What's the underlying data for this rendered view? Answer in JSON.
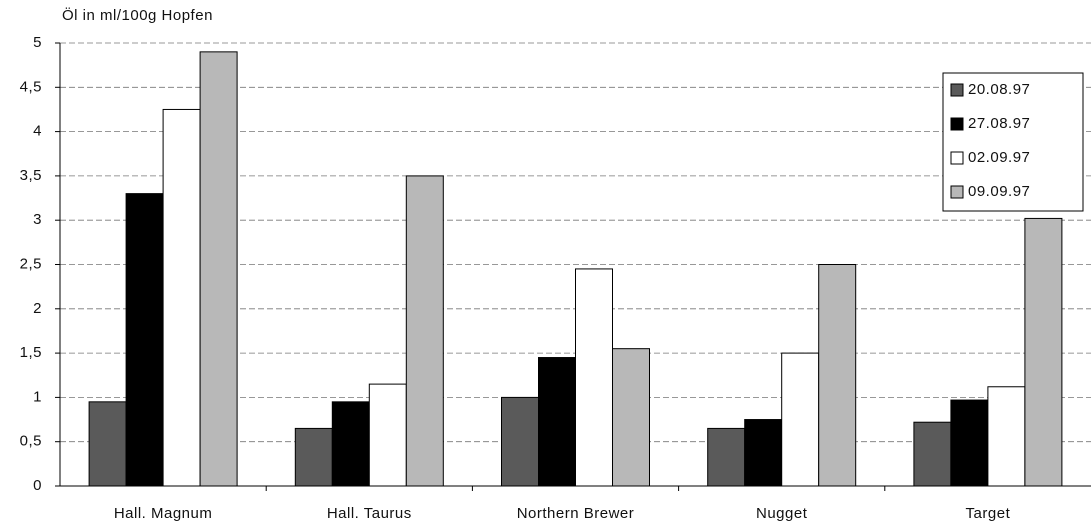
{
  "chart_data": {
    "type": "bar",
    "y_label": "Öl in ml/100g Hopfen",
    "categories": [
      "Hall. Magnum",
      "Hall. Taurus",
      "Northern Brewer",
      "Nugget",
      "Target"
    ],
    "series": [
      {
        "name": "20.08.97",
        "color": "#5a5a5a",
        "values": [
          0.95,
          0.65,
          1.0,
          0.65,
          0.72
        ]
      },
      {
        "name": "27.08.97",
        "color": "#000000",
        "values": [
          3.3,
          0.95,
          1.45,
          0.75,
          0.97
        ]
      },
      {
        "name": "02.09.97",
        "color": "#ffffff",
        "values": [
          4.25,
          1.15,
          2.45,
          1.5,
          1.12
        ]
      },
      {
        "name": "09.09.97",
        "color": "#b8b8b8",
        "values": [
          4.9,
          3.5,
          1.55,
          2.5,
          3.02
        ]
      }
    ],
    "ylim": [
      0,
      5
    ],
    "yticks": [
      0,
      {
        "value": 0.5,
        "label": "0,5"
      },
      1,
      {
        "value": 1.5,
        "label": "1,5"
      },
      2,
      {
        "value": 2.5,
        "label": "2,5"
      },
      3,
      {
        "value": 3.5,
        "label": "3,5"
      },
      4,
      {
        "value": 4.5,
        "label": "4,5"
      },
      5
    ],
    "grid": true,
    "legend": "upper right"
  }
}
